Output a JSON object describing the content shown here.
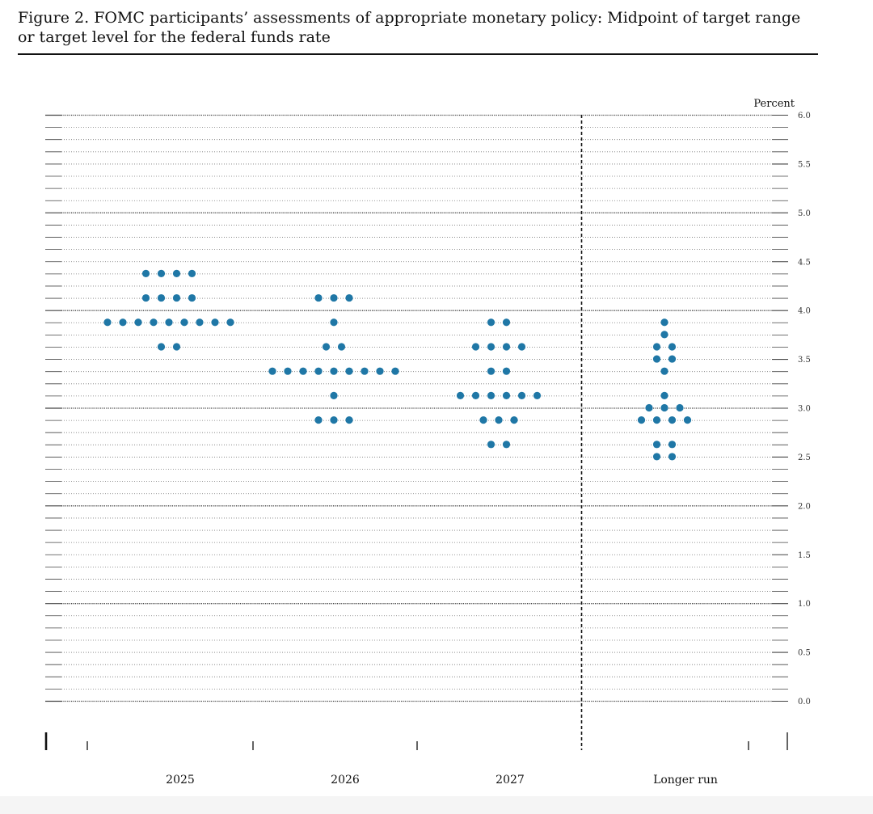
{
  "figure": {
    "caption_line1": "Figure 2.  FOMC participants’ assessments of appropriate monetary policy: Midpoint of target range",
    "caption_line2": "or target level for the federal funds rate"
  },
  "colors": {
    "dot": "#1f77a6",
    "grid_major": "#444444",
    "grid_minor": "#777777",
    "text": "#111111"
  },
  "chart_data": {
    "type": "scatter",
    "title": "",
    "ylabel": "Percent",
    "xlabel": "",
    "ylim": [
      0.0,
      6.0
    ],
    "y_ticks": [
      "0.0",
      "0.5",
      "1.0",
      "1.5",
      "2.0",
      "2.5",
      "3.0",
      "3.5",
      "4.0",
      "4.5",
      "5.0",
      "5.5",
      "6.0"
    ],
    "categories": [
      "2025",
      "2026",
      "2027",
      "Longer run"
    ],
    "grid": "dotted lines every 0.125; solid lines at whole numbers",
    "separator": "dashed vertical line between 2027 and Longer run",
    "dots": [
      {
        "category": "2025",
        "rows": [
          {
            "y": 4.375,
            "count": 4
          },
          {
            "y": 4.125,
            "count": 4
          },
          {
            "y": 3.875,
            "count": 9
          },
          {
            "y": 3.625,
            "count": 2
          }
        ]
      },
      {
        "category": "2026",
        "rows": [
          {
            "y": 4.125,
            "count": 3
          },
          {
            "y": 3.875,
            "count": 1
          },
          {
            "y": 3.625,
            "count": 2
          },
          {
            "y": 3.375,
            "count": 9
          },
          {
            "y": 3.125,
            "count": 1
          },
          {
            "y": 2.875,
            "count": 3
          }
        ]
      },
      {
        "category": "2027",
        "rows": [
          {
            "y": 3.875,
            "count": 2
          },
          {
            "y": 3.625,
            "count": 4
          },
          {
            "y": 3.375,
            "count": 2
          },
          {
            "y": 3.125,
            "count": 6
          },
          {
            "y": 2.875,
            "count": 3
          },
          {
            "y": 2.625,
            "count": 2
          }
        ]
      },
      {
        "category": "Longer run",
        "rows": [
          {
            "y": 3.875,
            "count": 1
          },
          {
            "y": 3.75,
            "count": 1
          },
          {
            "y": 3.625,
            "count": 2
          },
          {
            "y": 3.5,
            "count": 2
          },
          {
            "y": 3.375,
            "count": 1
          },
          {
            "y": 3.125,
            "count": 1
          },
          {
            "y": 3.0,
            "count": 3
          },
          {
            "y": 2.875,
            "count": 4
          },
          {
            "y": 2.625,
            "count": 2
          },
          {
            "y": 2.5,
            "count": 2
          }
        ]
      }
    ]
  }
}
